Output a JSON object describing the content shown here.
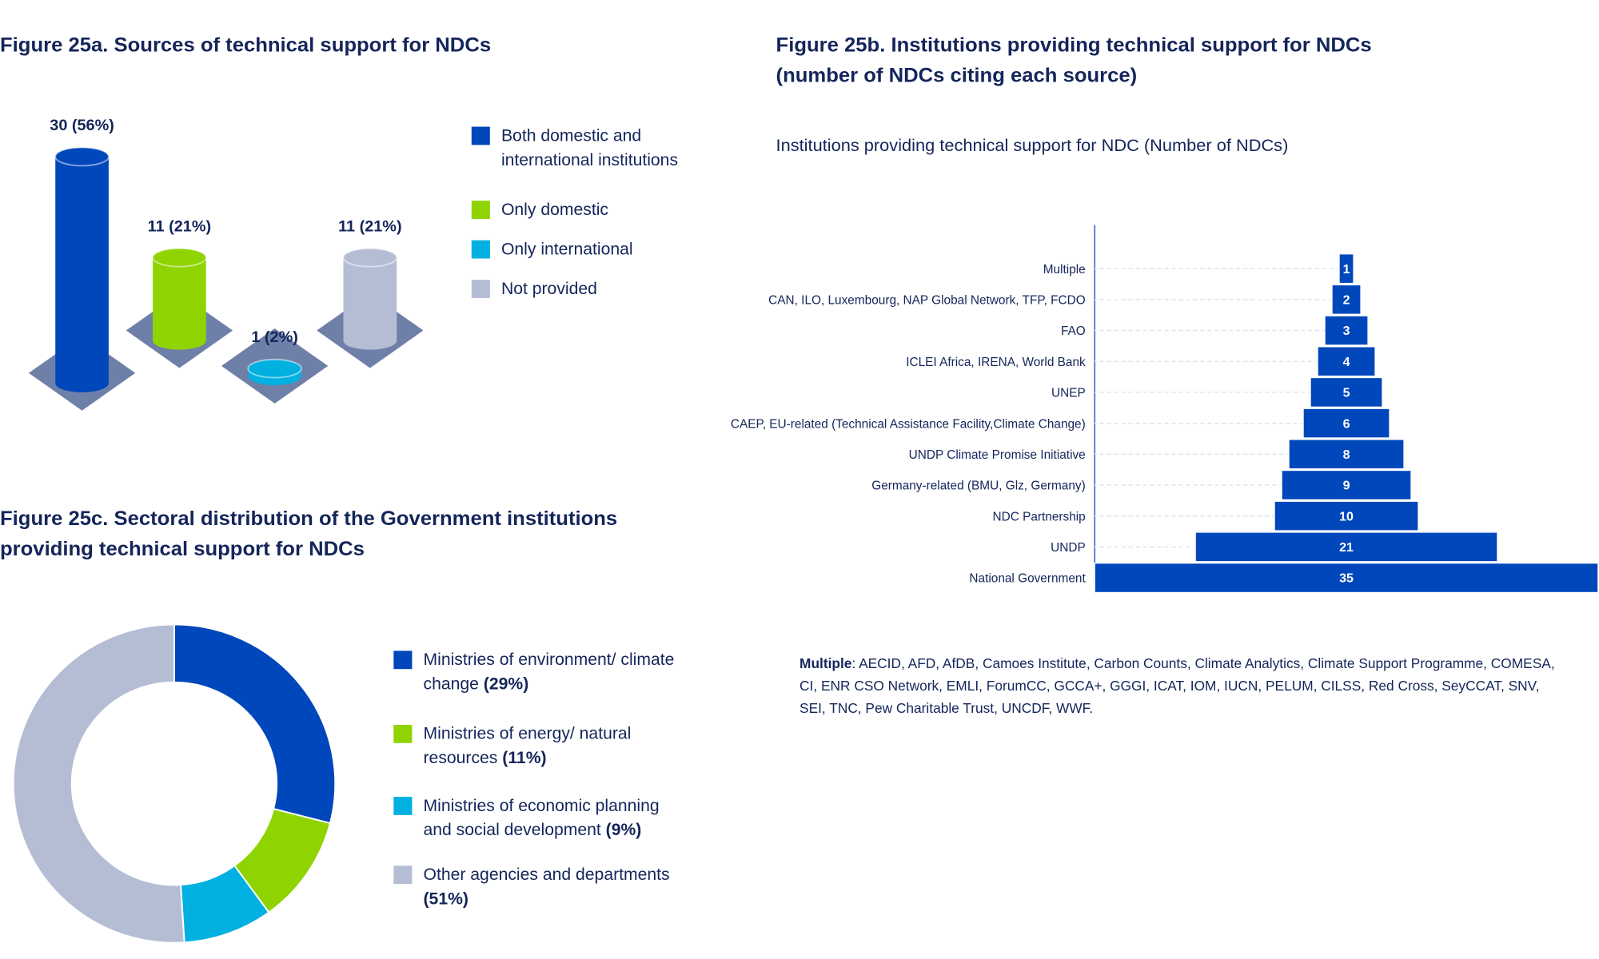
{
  "chart_data": [
    {
      "type": "cylinder",
      "title": "Figure 25a. Sources of technical support for NDCs",
      "categories": [
        "Both domestic and international institutions",
        "Only domestic",
        "Only international",
        "Not provided"
      ],
      "values": [
        30,
        11,
        1,
        11
      ],
      "value_labels": [
        "30 (56%)",
        "11 (21%)",
        "1 (2%)",
        "11 (21%)"
      ],
      "colors": [
        "#0047bb",
        "#8fd400",
        "#00b0e0",
        "#b5bdd5"
      ],
      "legend": "right"
    },
    {
      "type": "funnel",
      "title": "Figure 25b. Institutions providing technical support for NDCs (number of NDCs citing each source)",
      "subtitle": "Institutions providing technical support for NDC (Number of NDCs)",
      "categories": [
        "Multiple",
        "CAN, ILO, Luxembourg, NAP Global Network, TFP, FCDO",
        "FAO",
        "ICLEI Africa, IRENA, World Bank",
        "UNEP",
        "CAEP, EU-related (Technical Assistance Facility,Climate Change)",
        "UNDP Climate Promise Initiative",
        "Germany-related (BMU, Glz, Germany)",
        "NDC Partnership",
        "UNDP",
        "National Government"
      ],
      "values": [
        1,
        2,
        3,
        4,
        5,
        6,
        8,
        9,
        10,
        21,
        35
      ],
      "color": "#0047bb",
      "note_label": "Multiple",
      "note": ": AECID, AFD, AfDB, Camoes Institute, Carbon Counts, Climate Analytics, Climate Support Programme, COMESA, CI, ENR CSO Network, EMLI, ForumCC, GCCA+, GGGI, ICAT, IOM, IUCN, PELUM, CILSS, Red Cross, SeyCCAT, SNV, SEI, TNC, Pew Charitable Trust, UNCDF, WWF."
    },
    {
      "type": "donut",
      "title": "Figure 25c. Sectoral distribution of the Government institutions providing technical support for NDCs",
      "categories": [
        "Ministries of environment/ climate change",
        "Ministries of energy/ natural resources",
        "Ministries of economic planning and social development",
        "Other agencies and departments"
      ],
      "values": [
        29,
        11,
        9,
        51
      ],
      "value_labels": [
        "(29%)",
        "(11%)",
        "(9%)",
        "(51%)"
      ],
      "colors": [
        "#0047bb",
        "#8fd400",
        "#00b0e0",
        "#b5bdd5"
      ],
      "legend": "right"
    }
  ]
}
